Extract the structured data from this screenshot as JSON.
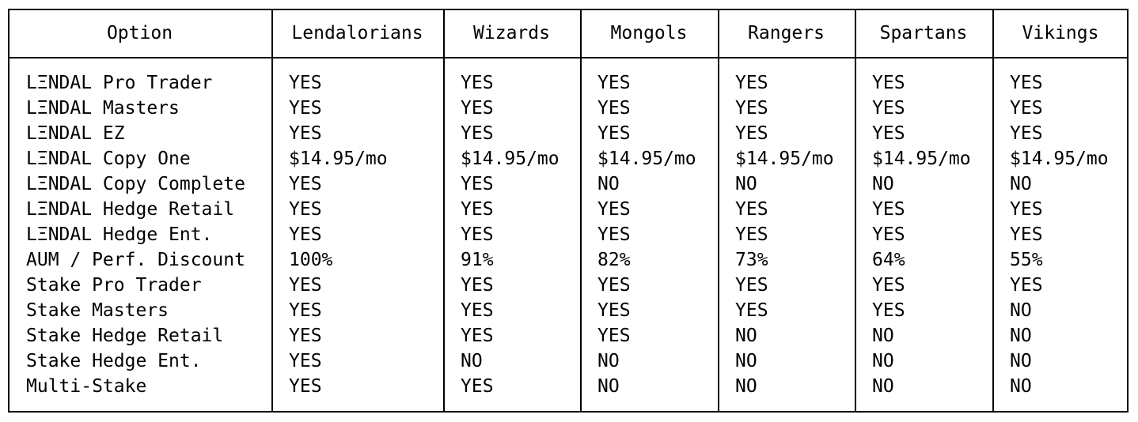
{
  "table": {
    "columns": [
      "Option",
      "Lendalorians",
      "Wizards",
      "Mongols",
      "Rangers",
      "Spartans",
      "Vikings"
    ],
    "rows": [
      [
        "LΞNDAL Pro Trader",
        "YES",
        "YES",
        "YES",
        "YES",
        "YES",
        "YES"
      ],
      [
        "LΞNDAL Masters",
        "YES",
        "YES",
        "YES",
        "YES",
        "YES",
        "YES"
      ],
      [
        "LΞNDAL EZ",
        "YES",
        "YES",
        "YES",
        "YES",
        "YES",
        "YES"
      ],
      [
        "LΞNDAL Copy One",
        "$14.95/mo",
        "$14.95/mo",
        "$14.95/mo",
        "$14.95/mo",
        "$14.95/mo",
        "$14.95/mo"
      ],
      [
        "LΞNDAL Copy Complete",
        "YES",
        "YES",
        "NO",
        "NO",
        "NO",
        "NO"
      ],
      [
        "LΞNDAL Hedge Retail",
        "YES",
        "YES",
        "YES",
        "YES",
        "YES",
        "YES"
      ],
      [
        "LΞNDAL Hedge Ent.",
        "YES",
        "YES",
        "YES",
        "YES",
        "YES",
        "YES"
      ],
      [
        "AUM / Perf. Discount",
        "100%",
        "91%",
        "82%",
        "73%",
        "64%",
        "55%"
      ],
      [
        "Stake Pro Trader",
        "YES",
        "YES",
        "YES",
        "YES",
        "YES",
        "YES"
      ],
      [
        "Stake Masters",
        "YES",
        "YES",
        "YES",
        "YES",
        "YES",
        "NO"
      ],
      [
        "Stake Hedge Retail",
        "YES",
        "YES",
        "YES",
        "NO",
        "NO",
        "NO"
      ],
      [
        "Stake Hedge Ent.",
        "YES",
        "NO",
        "NO",
        "NO",
        "NO",
        "NO"
      ],
      [
        "Multi-Stake",
        "YES",
        "YES",
        "NO",
        "NO",
        "NO",
        "NO"
      ]
    ]
  }
}
